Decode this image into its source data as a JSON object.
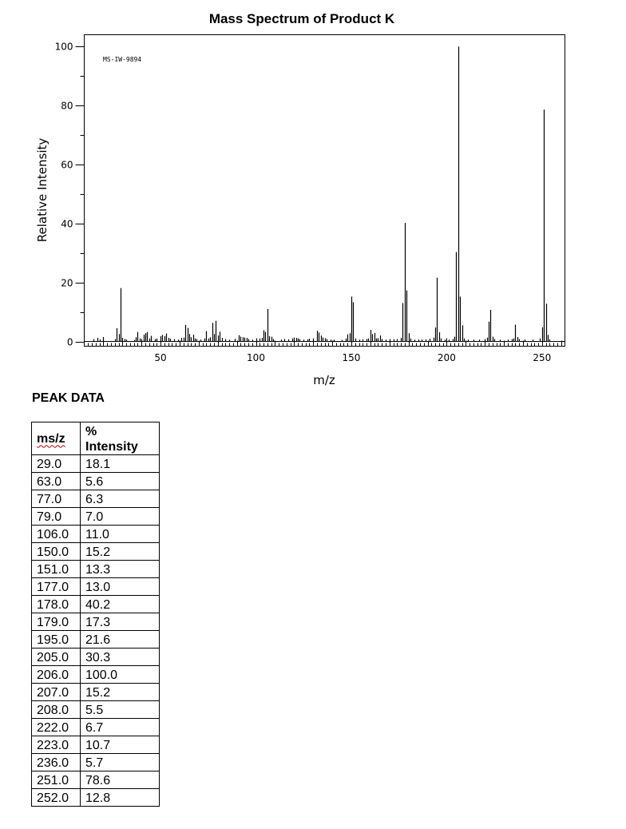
{
  "chart_data": {
    "type": "bar",
    "title": "Mass Spectrum of Product K",
    "annotation": "MS-IW-9894",
    "xlabel": "m/z",
    "ylabel": "Relative Intensity",
    "xlim": [
      10,
      262
    ],
    "ylim": [
      0,
      104
    ],
    "x_ticks": [
      50,
      100,
      150,
      200,
      250
    ],
    "y_ticks": [
      0,
      20,
      40,
      60,
      80,
      100
    ],
    "grid": false,
    "peaks": [
      {
        "mz": 15,
        "intensity": 0.8
      },
      {
        "mz": 17,
        "intensity": 1.2
      },
      {
        "mz": 18,
        "intensity": 0.7
      },
      {
        "mz": 20,
        "intensity": 1.5
      },
      {
        "mz": 26,
        "intensity": 0.8
      },
      {
        "mz": 27,
        "intensity": 4.5
      },
      {
        "mz": 28,
        "intensity": 2.5
      },
      {
        "mz": 29,
        "intensity": 18.1
      },
      {
        "mz": 30,
        "intensity": 1.2
      },
      {
        "mz": 31,
        "intensity": 0.8
      },
      {
        "mz": 32,
        "intensity": 0.6
      },
      {
        "mz": 36,
        "intensity": 0.5
      },
      {
        "mz": 37,
        "intensity": 1.4
      },
      {
        "mz": 38,
        "intensity": 3.2
      },
      {
        "mz": 39,
        "intensity": 1.0
      },
      {
        "mz": 40,
        "intensity": 0.8
      },
      {
        "mz": 41,
        "intensity": 2.3
      },
      {
        "mz": 42,
        "intensity": 2.8
      },
      {
        "mz": 43,
        "intensity": 3.2
      },
      {
        "mz": 44,
        "intensity": 1.0
      },
      {
        "mz": 45,
        "intensity": 1.9
      },
      {
        "mz": 47,
        "intensity": 0.8
      },
      {
        "mz": 48,
        "intensity": 1.0
      },
      {
        "mz": 50,
        "intensity": 1.8
      },
      {
        "mz": 51,
        "intensity": 2.2
      },
      {
        "mz": 52,
        "intensity": 1.8
      },
      {
        "mz": 53,
        "intensity": 2.7
      },
      {
        "mz": 54,
        "intensity": 1.2
      },
      {
        "mz": 55,
        "intensity": 0.9
      },
      {
        "mz": 57,
        "intensity": 0.8
      },
      {
        "mz": 59,
        "intensity": 0.6
      },
      {
        "mz": 61,
        "intensity": 1.2
      },
      {
        "mz": 62,
        "intensity": 1.3
      },
      {
        "mz": 63,
        "intensity": 5.6
      },
      {
        "mz": 64,
        "intensity": 4.6
      },
      {
        "mz": 65,
        "intensity": 2.5
      },
      {
        "mz": 66,
        "intensity": 1.4
      },
      {
        "mz": 67,
        "intensity": 2.3
      },
      {
        "mz": 68,
        "intensity": 1.0
      },
      {
        "mz": 69,
        "intensity": 0.8
      },
      {
        "mz": 71,
        "intensity": 0.6
      },
      {
        "mz": 73,
        "intensity": 1.0
      },
      {
        "mz": 74,
        "intensity": 3.5
      },
      {
        "mz": 75,
        "intensity": 1.0
      },
      {
        "mz": 76,
        "intensity": 1.4
      },
      {
        "mz": 77,
        "intensity": 6.3
      },
      {
        "mz": 78,
        "intensity": 2.5
      },
      {
        "mz": 79,
        "intensity": 7.0
      },
      {
        "mz": 80,
        "intensity": 2.0
      },
      {
        "mz": 81,
        "intensity": 3.3
      },
      {
        "mz": 82,
        "intensity": 1.2
      },
      {
        "mz": 84,
        "intensity": 0.8
      },
      {
        "mz": 86,
        "intensity": 0.6
      },
      {
        "mz": 89,
        "intensity": 0.9
      },
      {
        "mz": 91,
        "intensity": 2.1
      },
      {
        "mz": 92,
        "intensity": 1.6
      },
      {
        "mz": 93,
        "intensity": 1.4
      },
      {
        "mz": 94,
        "intensity": 1.3
      },
      {
        "mz": 95,
        "intensity": 1.2
      },
      {
        "mz": 96,
        "intensity": 0.8
      },
      {
        "mz": 98,
        "intensity": 0.6
      },
      {
        "mz": 100,
        "intensity": 0.7
      },
      {
        "mz": 102,
        "intensity": 1.0
      },
      {
        "mz": 103,
        "intensity": 1.2
      },
      {
        "mz": 104,
        "intensity": 3.8
      },
      {
        "mz": 105,
        "intensity": 3.2
      },
      {
        "mz": 106,
        "intensity": 11.0
      },
      {
        "mz": 107,
        "intensity": 1.8
      },
      {
        "mz": 108,
        "intensity": 1.6
      },
      {
        "mz": 109,
        "intensity": 0.8
      },
      {
        "mz": 113,
        "intensity": 0.6
      },
      {
        "mz": 115,
        "intensity": 0.8
      },
      {
        "mz": 117,
        "intensity": 0.7
      },
      {
        "mz": 119,
        "intensity": 1.0
      },
      {
        "mz": 120,
        "intensity": 1.3
      },
      {
        "mz": 121,
        "intensity": 1.2
      },
      {
        "mz": 122,
        "intensity": 1.0
      },
      {
        "mz": 123,
        "intensity": 0.8
      },
      {
        "mz": 125,
        "intensity": 0.6
      },
      {
        "mz": 127,
        "intensity": 0.7
      },
      {
        "mz": 128,
        "intensity": 0.9
      },
      {
        "mz": 130,
        "intensity": 1.0
      },
      {
        "mz": 132,
        "intensity": 3.6
      },
      {
        "mz": 133,
        "intensity": 3.0
      },
      {
        "mz": 134,
        "intensity": 2.0
      },
      {
        "mz": 135,
        "intensity": 1.3
      },
      {
        "mz": 136,
        "intensity": 1.1
      },
      {
        "mz": 137,
        "intensity": 0.8
      },
      {
        "mz": 139,
        "intensity": 0.6
      },
      {
        "mz": 141,
        "intensity": 0.6
      },
      {
        "mz": 145,
        "intensity": 0.5
      },
      {
        "mz": 147,
        "intensity": 1.0
      },
      {
        "mz": 148,
        "intensity": 2.4
      },
      {
        "mz": 149,
        "intensity": 2.8
      },
      {
        "mz": 150,
        "intensity": 15.2
      },
      {
        "mz": 151,
        "intensity": 13.3
      },
      {
        "mz": 152,
        "intensity": 1.0
      },
      {
        "mz": 154,
        "intensity": 0.6
      },
      {
        "mz": 156,
        "intensity": 0.7
      },
      {
        "mz": 158,
        "intensity": 0.8
      },
      {
        "mz": 159,
        "intensity": 1.0
      },
      {
        "mz": 160,
        "intensity": 3.9
      },
      {
        "mz": 161,
        "intensity": 2.5
      },
      {
        "mz": 162,
        "intensity": 2.9
      },
      {
        "mz": 163,
        "intensity": 1.0
      },
      {
        "mz": 164,
        "intensity": 1.1
      },
      {
        "mz": 165,
        "intensity": 2.0
      },
      {
        "mz": 166,
        "intensity": 0.8
      },
      {
        "mz": 168,
        "intensity": 0.6
      },
      {
        "mz": 170,
        "intensity": 0.8
      },
      {
        "mz": 172,
        "intensity": 0.7
      },
      {
        "mz": 174,
        "intensity": 0.8
      },
      {
        "mz": 176,
        "intensity": 1.2
      },
      {
        "mz": 177,
        "intensity": 13.0
      },
      {
        "mz": 178,
        "intensity": 40.2
      },
      {
        "mz": 179,
        "intensity": 17.3
      },
      {
        "mz": 180,
        "intensity": 2.8
      },
      {
        "mz": 181,
        "intensity": 1.0
      },
      {
        "mz": 183,
        "intensity": 0.6
      },
      {
        "mz": 185,
        "intensity": 0.6
      },
      {
        "mz": 187,
        "intensity": 0.6
      },
      {
        "mz": 189,
        "intensity": 0.7
      },
      {
        "mz": 191,
        "intensity": 0.9
      },
      {
        "mz": 193,
        "intensity": 1.3
      },
      {
        "mz": 194,
        "intensity": 4.7
      },
      {
        "mz": 195,
        "intensity": 21.6
      },
      {
        "mz": 196,
        "intensity": 3.1
      },
      {
        "mz": 197,
        "intensity": 1.0
      },
      {
        "mz": 199,
        "intensity": 0.6
      },
      {
        "mz": 201,
        "intensity": 0.6
      },
      {
        "mz": 203,
        "intensity": 0.8
      },
      {
        "mz": 204,
        "intensity": 1.6
      },
      {
        "mz": 205,
        "intensity": 30.3
      },
      {
        "mz": 206,
        "intensity": 100.0
      },
      {
        "mz": 207,
        "intensity": 15.2
      },
      {
        "mz": 208,
        "intensity": 5.5
      },
      {
        "mz": 209,
        "intensity": 1.0
      },
      {
        "mz": 211,
        "intensity": 0.6
      },
      {
        "mz": 214,
        "intensity": 0.6
      },
      {
        "mz": 217,
        "intensity": 0.6
      },
      {
        "mz": 220,
        "intensity": 0.8
      },
      {
        "mz": 221,
        "intensity": 1.3
      },
      {
        "mz": 222,
        "intensity": 6.7
      },
      {
        "mz": 223,
        "intensity": 10.7
      },
      {
        "mz": 224,
        "intensity": 1.6
      },
      {
        "mz": 225,
        "intensity": 0.8
      },
      {
        "mz": 228,
        "intensity": 0.6
      },
      {
        "mz": 232,
        "intensity": 0.6
      },
      {
        "mz": 234,
        "intensity": 0.8
      },
      {
        "mz": 235,
        "intensity": 1.0
      },
      {
        "mz": 236,
        "intensity": 5.7
      },
      {
        "mz": 237,
        "intensity": 1.5
      },
      {
        "mz": 238,
        "intensity": 0.8
      },
      {
        "mz": 241,
        "intensity": 0.6
      },
      {
        "mz": 245,
        "intensity": 0.6
      },
      {
        "mz": 249,
        "intensity": 1.0
      },
      {
        "mz": 250,
        "intensity": 4.8
      },
      {
        "mz": 251,
        "intensity": 78.6
      },
      {
        "mz": 252,
        "intensity": 12.8
      },
      {
        "mz": 253,
        "intensity": 2.2
      },
      {
        "mz": 254,
        "intensity": 0.7
      }
    ]
  },
  "peak_table": {
    "heading": "PEAK DATA",
    "columns": [
      "ms/z",
      "% Intensity"
    ],
    "percent_symbol": "%",
    "intensity_word": "Intensity",
    "rows": [
      [
        "29.0",
        "18.1"
      ],
      [
        "63.0",
        "5.6"
      ],
      [
        "77.0",
        "6.3"
      ],
      [
        "79.0",
        "7.0"
      ],
      [
        "106.0",
        "11.0"
      ],
      [
        "150.0",
        "15.2"
      ],
      [
        "151.0",
        "13.3"
      ],
      [
        "177.0",
        "13.0"
      ],
      [
        "178.0",
        "40.2"
      ],
      [
        "179.0",
        "17.3"
      ],
      [
        "195.0",
        "21.6"
      ],
      [
        "205.0",
        "30.3"
      ],
      [
        "206.0",
        "100.0"
      ],
      [
        "207.0",
        "15.2"
      ],
      [
        "208.0",
        "5.5"
      ],
      [
        "222.0",
        "6.7"
      ],
      [
        "223.0",
        "10.7"
      ],
      [
        "236.0",
        "5.7"
      ],
      [
        "251.0",
        "78.6"
      ],
      [
        "252.0",
        "12.8"
      ]
    ]
  }
}
